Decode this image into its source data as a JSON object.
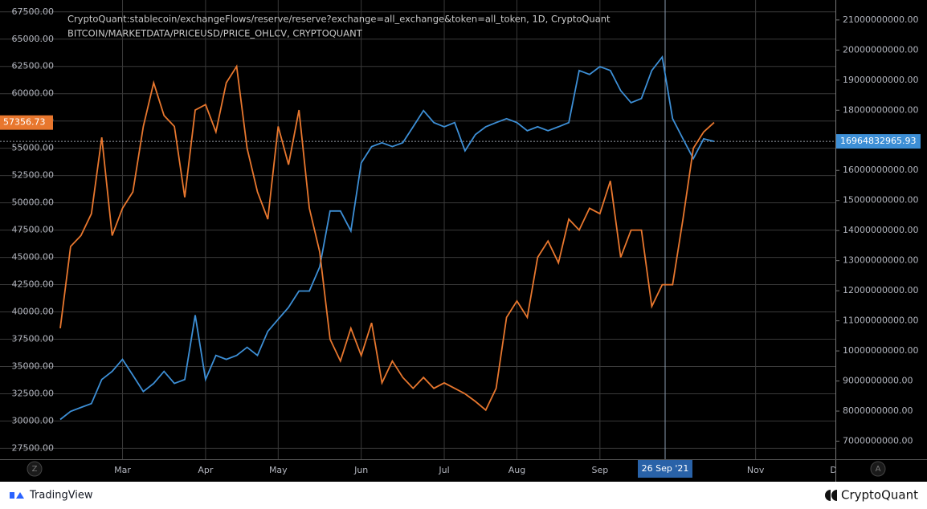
{
  "chart_data": {
    "type": "line",
    "categories": [
      null,
      null,
      null,
      null,
      null,
      null,
      "Mar",
      null,
      null,
      null,
      null,
      null,
      null,
      null,
      "Apr",
      null,
      null,
      null,
      null,
      null,
      null,
      "May",
      null,
      null,
      null,
      null,
      null,
      null,
      null,
      "Jun",
      null,
      null,
      null,
      null,
      null,
      null,
      null,
      "Jul",
      null,
      null,
      null,
      null,
      null,
      null,
      "Aug",
      null,
      null,
      null,
      null,
      null,
      null,
      null,
      "Sep",
      null,
      null,
      null,
      null,
      null,
      null,
      null,
      null,
      null,
      null,
      null,
      null,
      null,
      null,
      "Nov",
      null,
      null,
      null,
      null,
      null,
      null,
      null,
      "Dec"
    ],
    "series": [
      {
        "name": "CryptoQuant:stablecoin/exchangeFlows/reserve/reserve?exchange=all_exchange&token=all_token, 1D, CryptoQuant",
        "color": "#3d8fd6",
        "axis": "y2",
        "current_label": "16964832965.93",
        "values": [
          7720000000,
          7990000000,
          8120000000,
          8250000000,
          9050000000,
          9320000000,
          9720000000,
          9190000000,
          8650000000,
          8920000000,
          9320000000,
          8920000000,
          9050000000,
          11190000000,
          9050000000,
          9850000000,
          9720000000,
          9850000000,
          10120000000,
          9850000000,
          10650000000,
          11050000000,
          11450000000,
          11990000000,
          11990000000,
          12790000000,
          14650000000,
          14650000000,
          13990000000,
          16250000000,
          16790000000,
          16920000000,
          16790000000,
          16920000000,
          17450000000,
          17990000000,
          17590000000,
          17450000000,
          17590000000,
          16650000000,
          17190000000,
          17450000000,
          17590000000,
          17720000000,
          17590000000,
          17320000000,
          17450000000,
          17320000000,
          17450000000,
          17590000000,
          19320000000,
          19190000000,
          19450000000,
          19320000000,
          18650000000,
          18250000000,
          18390000000,
          19320000000,
          19770000000,
          17720000000,
          17050000000,
          16390000000,
          17050000000,
          16964832965.93,
          null,
          null,
          null,
          null,
          null,
          null,
          null,
          null,
          null,
          null,
          null,
          null
        ]
      },
      {
        "name": "BITCOIN/MARKETDATA/PRICEUSD/PRICE_OHLCV, CRYPTOQUANT",
        "color": "#e8772e",
        "axis": "y",
        "current_label": "57356.73",
        "values": [
          38500,
          46000,
          47000,
          49000,
          56000,
          47000,
          49500,
          51000,
          57000,
          61000,
          58000,
          57000,
          50500,
          58500,
          59000,
          56500,
          61000,
          62500,
          55000,
          51000,
          48500,
          57000,
          53500,
          58500,
          49500,
          45500,
          37500,
          35500,
          38500,
          36000,
          39000,
          33500,
          35500,
          34000,
          33000,
          34000,
          33000,
          33500,
          33000,
          32500,
          31800,
          31000,
          33000,
          39500,
          41000,
          39500,
          45000,
          46500,
          44500,
          48500,
          47500,
          49500,
          49000,
          52000,
          45000,
          47500,
          47500,
          40500,
          42500,
          42500,
          48500,
          55000,
          56500,
          57356.73,
          null,
          null,
          null,
          null,
          null,
          null,
          null,
          null,
          null,
          null,
          null,
          null
        ]
      }
    ],
    "ylim": [
      26500,
      68000
    ],
    "yticks": [
      {
        "value": 27500,
        "label": "27500.00"
      },
      {
        "value": 30000,
        "label": "30000.00"
      },
      {
        "value": 32500,
        "label": "32500.00"
      },
      {
        "value": 35000,
        "label": "35000.00"
      },
      {
        "value": 37500,
        "label": "37500.00"
      },
      {
        "value": 40000,
        "label": "40000.00"
      },
      {
        "value": 42500,
        "label": "42500.00"
      },
      {
        "value": 45000,
        "label": "45000.00"
      },
      {
        "value": 47500,
        "label": "47500.00"
      },
      {
        "value": 50000,
        "label": "50000.00"
      },
      {
        "value": 52500,
        "label": "52500.00"
      },
      {
        "value": 55000,
        "label": "55000.00"
      },
      {
        "value": 57500,
        "label": "57500.00"
      },
      {
        "value": 60000,
        "label": "60000.00"
      },
      {
        "value": 62500,
        "label": "62500.00"
      },
      {
        "value": 65000,
        "label": "65000.00"
      },
      {
        "value": 67500,
        "label": "67500.00"
      }
    ],
    "y2lim": [
      6400000000,
      21450000000
    ],
    "y2ticks": [
      {
        "value": 7000000000,
        "label": "7000000000.00"
      },
      {
        "value": 8000000000,
        "label": "8000000000.00"
      },
      {
        "value": 9000000000,
        "label": "9000000000.00"
      },
      {
        "value": 10000000000,
        "label": "10000000000.00"
      },
      {
        "value": 11000000000,
        "label": "11000000000.00"
      },
      {
        "value": 12000000000,
        "label": "12000000000.00"
      },
      {
        "value": 13000000000,
        "label": "13000000000.00"
      },
      {
        "value": 14000000000,
        "label": "14000000000.00"
      },
      {
        "value": 15000000000,
        "label": "15000000000.00"
      },
      {
        "value": 16000000000,
        "label": "16000000000.00"
      },
      {
        "value": 17000000000,
        "label": "17000000000.00"
      },
      {
        "value": 18000000000,
        "label": "18000000000.00"
      },
      {
        "value": 19000000000,
        "label": "19000000000.00"
      },
      {
        "value": 20000000000,
        "label": "20000000000.00"
      },
      {
        "value": 21000000000,
        "label": "21000000000.00"
      }
    ],
    "grid": true,
    "crosshair_label": "26 Sep '21"
  },
  "controls": [
    "Z",
    "A"
  ],
  "branding": {
    "left": "TradingView",
    "right": "CryptoQuant"
  }
}
